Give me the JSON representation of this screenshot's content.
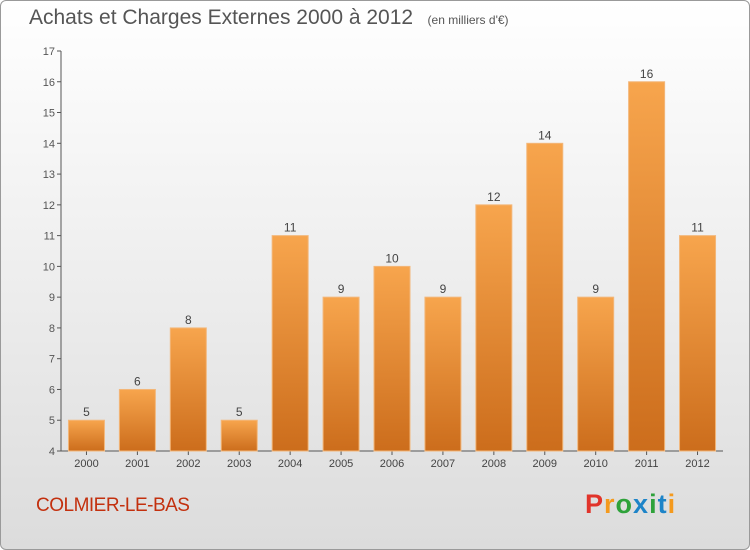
{
  "header": {
    "title": "Achats et Charges Externes 2000 à 2012",
    "unit": "(en milliers d'€)"
  },
  "footer": {
    "place": "COLMIER-LE-BAS",
    "brand": "Proxiti"
  },
  "colors": {
    "bar_top": "#f7a54d",
    "bar_bottom": "#cc6d1c",
    "bar_edge": "#f3b77a",
    "place_text": "#c3300e",
    "title_text": "#555555"
  },
  "chart_data": {
    "type": "bar",
    "title": "Achats et Charges Externes 2000 à 2012",
    "categories": [
      "2000",
      "2001",
      "2002",
      "2003",
      "2004",
      "2005",
      "2006",
      "2007",
      "2008",
      "2009",
      "2010",
      "2011",
      "2012"
    ],
    "values": [
      5,
      6,
      8,
      5,
      11,
      9,
      10,
      9,
      12,
      14,
      9,
      16,
      11
    ],
    "ylim": [
      4,
      17
    ],
    "yticks": [
      4,
      5,
      6,
      7,
      8,
      9,
      10,
      11,
      12,
      13,
      14,
      15,
      16,
      17
    ],
    "grid": false,
    "data_labels": true
  }
}
